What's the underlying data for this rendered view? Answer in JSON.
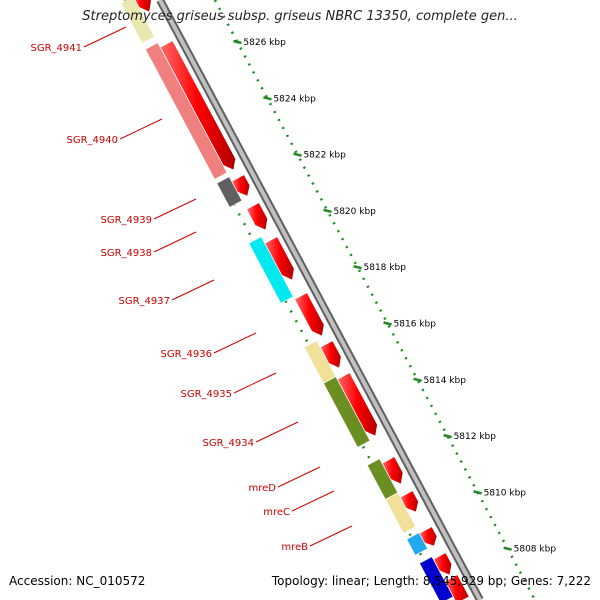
{
  "title": "Streptomyces griseus subsp. griseus NBRC 13350, complete gen...",
  "footer": {
    "accession": "Accession: NC_010572",
    "topology": "Topology: linear; Length: 8,545,929 bp; Genes: 7,222"
  },
  "colors": {
    "forward_gene": "#ff0000",
    "backbone": "#a0a0a0",
    "ruler": "#228822",
    "label": "#cc0000"
  },
  "ticks": [
    "5826 kbp",
    "5824 kbp",
    "5822 kbp",
    "5820 kbp",
    "5818 kbp",
    "5816 kbp",
    "5814 kbp",
    "5812 kbp",
    "5810 kbp",
    "5808 kbp"
  ],
  "genes": [
    {
      "name": "SGR_4941",
      "color": "#e8e8b0"
    },
    {
      "name": "SGR_4940",
      "color": "#f08080"
    },
    {
      "name": "SGR_4939",
      "color": "#606060"
    },
    {
      "name": "SGR_4938",
      "color": "#ffffff"
    },
    {
      "name": "SGR_4937",
      "color": "#00e8f0"
    },
    {
      "name": "SGR_4936",
      "color": "#ffffff"
    },
    {
      "name": "SGR_4935",
      "color": "#f0e098"
    },
    {
      "name": "SGR_4934",
      "color": "#6b8e23"
    },
    {
      "name": "mreD",
      "color": "#6b8e23"
    },
    {
      "name": "mreC",
      "color": "#f0e098"
    },
    {
      "name": "mreB",
      "color": "#22aaee"
    }
  ]
}
